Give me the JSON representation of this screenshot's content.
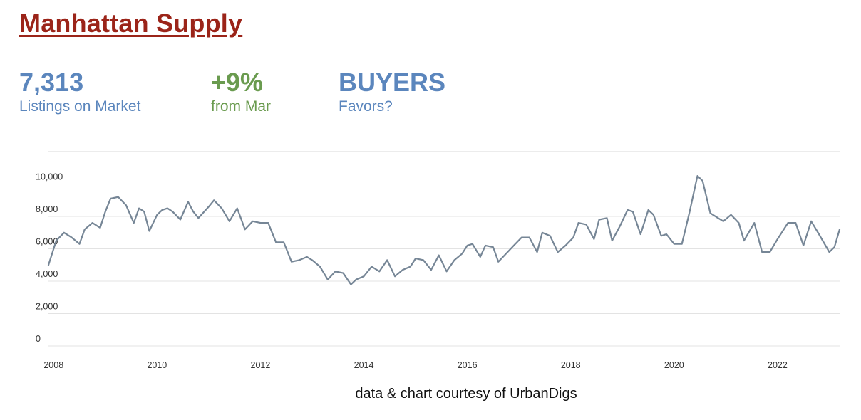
{
  "header": {
    "title": "Manhattan Supply"
  },
  "stats": [
    {
      "value": "7,313",
      "label": "Listings on Market",
      "color": "#5b86bd"
    },
    {
      "value": "+9%",
      "label": "from Mar",
      "color": "#6a9b4f"
    },
    {
      "value": "BUYERS",
      "label": "Favors?",
      "color": "#5b86bd"
    }
  ],
  "footer": {
    "credit": "data & chart courtesy of UrbanDigs"
  },
  "chart_data": {
    "type": "line",
    "title": "",
    "xlabel": "",
    "ylabel": "",
    "xlim": [
      2007.9,
      2023.2
    ],
    "ylim": [
      0,
      12000
    ],
    "grid": true,
    "line_color": "#768696",
    "x_ticks": [
      {
        "value": 2008,
        "label": "2008"
      },
      {
        "value": 2010,
        "label": "2010"
      },
      {
        "value": 2012,
        "label": "2012"
      },
      {
        "value": 2014,
        "label": "2014"
      },
      {
        "value": 2016,
        "label": "2016"
      },
      {
        "value": 2018,
        "label": "2018"
      },
      {
        "value": 2020,
        "label": "2020"
      },
      {
        "value": 2022,
        "label": "2022"
      }
    ],
    "y_ticks": [
      {
        "value": 0,
        "label": "0"
      },
      {
        "value": 2000,
        "label": "2,000"
      },
      {
        "value": 4000,
        "label": "4,000"
      },
      {
        "value": 6000,
        "label": "6,000"
      },
      {
        "value": 8000,
        "label": "8,000"
      },
      {
        "value": 10000,
        "label": "10,000"
      }
    ],
    "series": [
      {
        "x": [
          2007.9,
          2008.05,
          2008.2,
          2008.35,
          2008.5,
          2008.6,
          2008.75,
          2008.9,
          2009.0,
          2009.1,
          2009.25,
          2009.4,
          2009.55,
          2009.65,
          2009.75,
          2009.85,
          2010.0,
          2010.1,
          2010.2,
          2010.3,
          2010.45,
          2010.6,
          2010.7,
          2010.8,
          2011.0,
          2011.1,
          2011.25,
          2011.4,
          2011.55,
          2011.7,
          2011.85,
          2012.0,
          2012.15,
          2012.3,
          2012.45,
          2012.6,
          2012.75,
          2012.9,
          2013.0,
          2013.15,
          2013.3,
          2013.45,
          2013.6,
          2013.75,
          2013.85,
          2014.0,
          2014.15,
          2014.3,
          2014.45,
          2014.6,
          2014.75,
          2014.9,
          2015.0,
          2015.15,
          2015.3,
          2015.45,
          2015.6,
          2015.75,
          2015.9,
          2016.0,
          2016.1,
          2016.25,
          2016.35,
          2016.5,
          2016.6,
          2016.75,
          2016.9,
          2017.05,
          2017.2,
          2017.35,
          2017.45,
          2017.6,
          2017.75,
          2017.9,
          2018.05,
          2018.15,
          2018.3,
          2018.45,
          2018.55,
          2018.7,
          2018.8,
          2018.95,
          2019.1,
          2019.2,
          2019.35,
          2019.5,
          2019.6,
          2019.75,
          2019.85,
          2020.0,
          2020.15,
          2020.3,
          2020.45,
          2020.55,
          2020.7,
          2020.85,
          2020.95,
          2021.1,
          2021.25,
          2021.35,
          2021.55,
          2021.7,
          2021.85,
          2022.0,
          2022.2,
          2022.35,
          2022.5,
          2022.65,
          2022.8,
          2023.0,
          2023.1,
          2023.2
        ],
        "values": [
          5000,
          6500,
          7000,
          6700,
          6300,
          7200,
          7600,
          7300,
          8300,
          9100,
          9200,
          8700,
          7600,
          8500,
          8300,
          7100,
          8100,
          8400,
          8500,
          8300,
          7800,
          8900,
          8300,
          7900,
          8600,
          9000,
          8500,
          7700,
          8500,
          7200,
          7700,
          7600,
          7600,
          6400,
          6400,
          5200,
          5300,
          5500,
          5300,
          4900,
          4100,
          4600,
          4500,
          3800,
          4100,
          4300,
          4900,
          4600,
          5300,
          4300,
          4700,
          4900,
          5400,
          5300,
          4700,
          5600,
          4600,
          5300,
          5700,
          6200,
          6300,
          5500,
          6200,
          6100,
          5200,
          5700,
          6200,
          6700,
          6700,
          5800,
          7000,
          6800,
          5800,
          6200,
          6700,
          7600,
          7500,
          6600,
          7800,
          7900,
          6500,
          7400,
          8400,
          8300,
          6900,
          8400,
          8100,
          6800,
          6900,
          6300,
          6300,
          8300,
          10500,
          10200,
          8200,
          7900,
          7700,
          8100,
          7600,
          6500,
          7600,
          5800,
          5800,
          6600,
          7600,
          7600,
          6200,
          7700,
          6900,
          5800,
          6100,
          7200
        ]
      }
    ]
  }
}
